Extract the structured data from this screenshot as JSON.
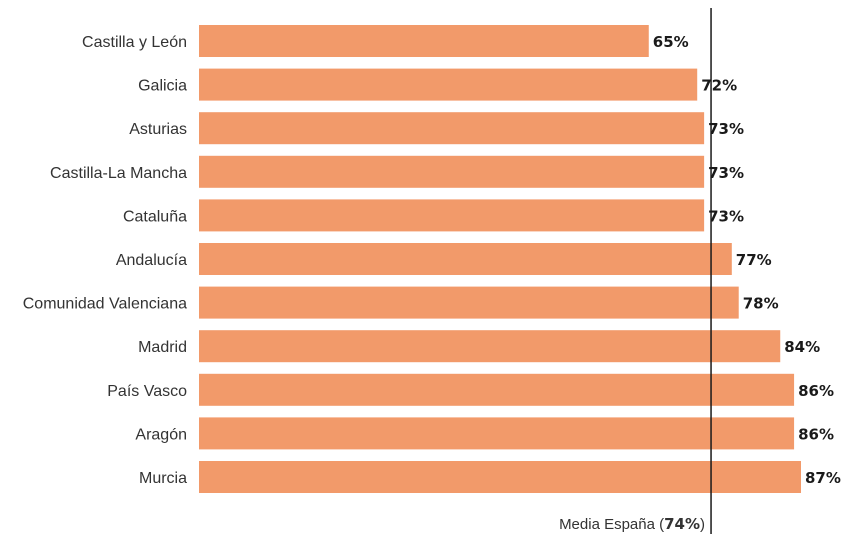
{
  "chart_data": {
    "type": "bar",
    "orientation": "horizontal",
    "categories": [
      "Castilla y León",
      "Galicia",
      "Asturias",
      "Castilla-La Mancha",
      "Cataluña",
      "Andalucía",
      "Comunidad Valenciana",
      "Madrid",
      "País Vasco",
      "Aragón",
      "Murcia"
    ],
    "values": [
      65,
      72,
      73,
      73,
      73,
      77,
      78,
      84,
      86,
      86,
      87
    ],
    "value_labels": [
      "65%",
      "72%",
      "73%",
      "73%",
      "73%",
      "77%",
      "78%",
      "84%",
      "86%",
      "86%",
      "87%"
    ],
    "unit": "%",
    "xlim": [
      0,
      87
    ],
    "grid": false,
    "bar_color": "#f29a6a",
    "reference_line": {
      "value": 74,
      "label_prefix": "Media España (",
      "label_value": "74%",
      "label_suffix": ")",
      "color": "#1a1a1a"
    }
  }
}
